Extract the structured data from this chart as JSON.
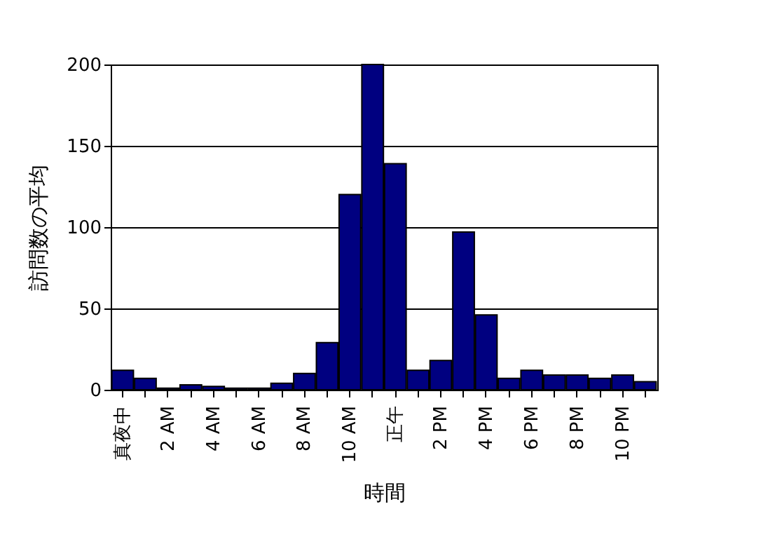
{
  "chart_data": {
    "type": "bar",
    "xlabel": "時間",
    "ylabel": "訪問数の平均",
    "categories": [
      "真夜中",
      null,
      "2 AM",
      null,
      "4 AM",
      null,
      "6 AM",
      null,
      "8 AM",
      null,
      "10 AM",
      null,
      "正午",
      null,
      "2 PM",
      null,
      "4 PM",
      null,
      "6 PM",
      null,
      "8 PM",
      null,
      "10 PM",
      null
    ],
    "values": [
      12,
      7,
      1,
      3,
      2,
      1,
      1,
      4,
      10,
      29,
      120,
      200,
      139,
      12,
      18,
      97,
      46,
      7,
      12,
      9,
      9,
      7,
      9,
      5
    ],
    "color": "#000080",
    "ylim": [
      0,
      200
    ],
    "yticks": [
      0,
      50,
      100,
      150,
      200
    ],
    "grid": "y"
  }
}
